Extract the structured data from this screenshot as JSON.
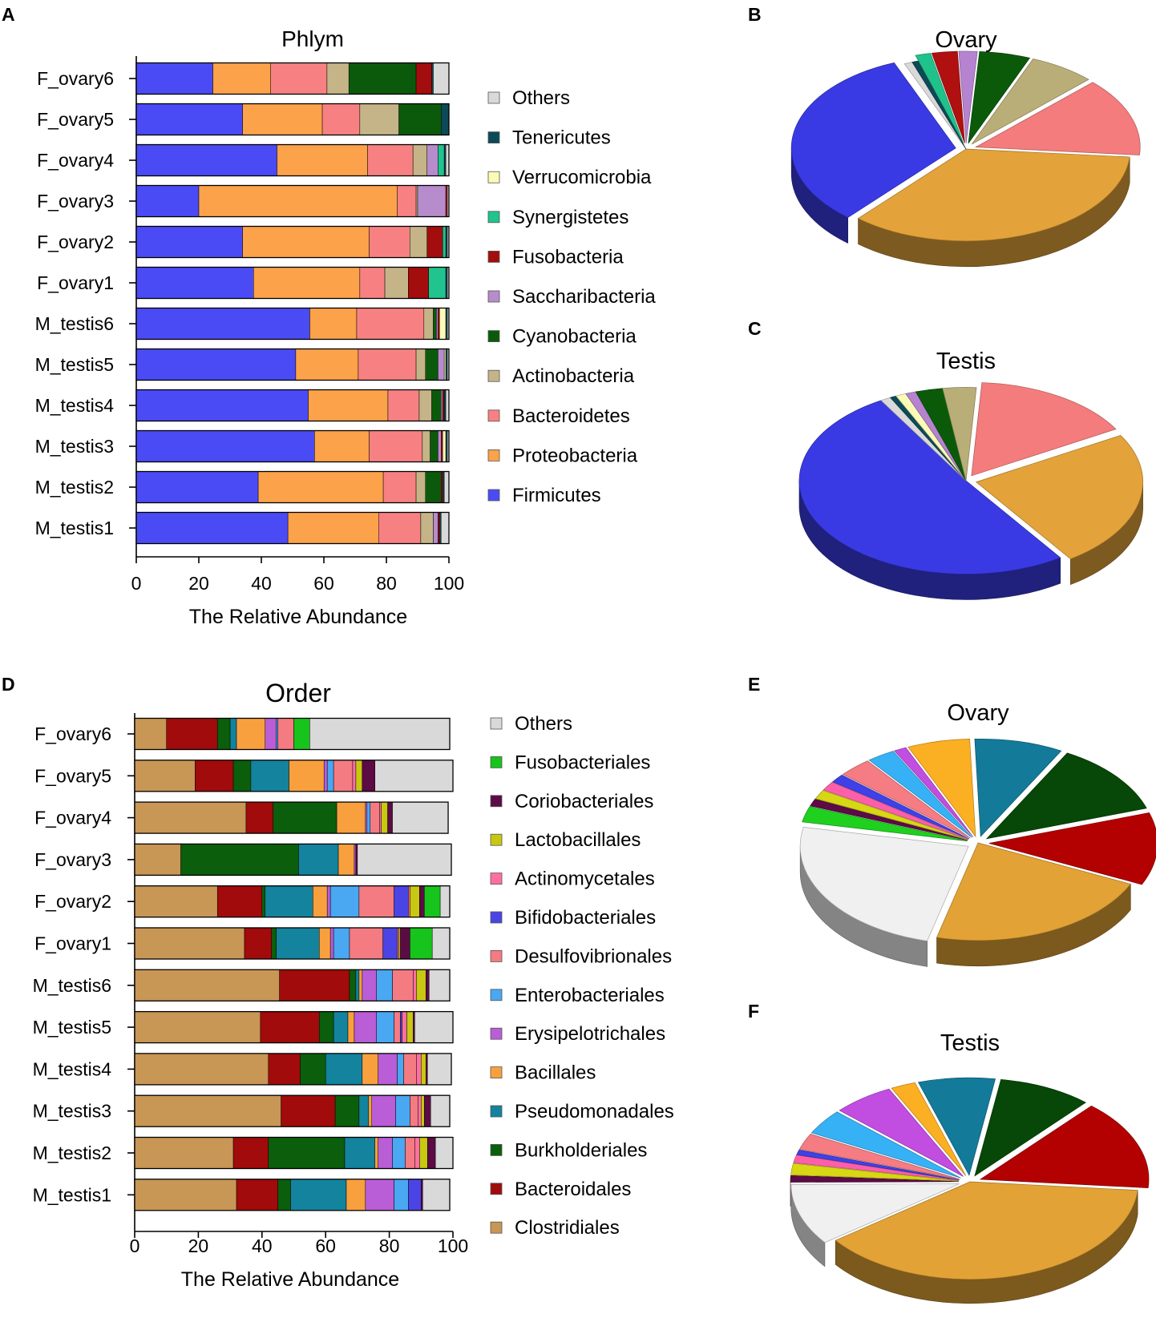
{
  "panel_letters": {
    "a": "A",
    "b": "B",
    "c": "C",
    "d": "D",
    "e": "E",
    "f": "F"
  },
  "chart_data": [
    {
      "id": "A",
      "type": "bar",
      "orientation": "horizontal",
      "stacked": true,
      "title": "Phlym",
      "xlabel": "The Relative Abundance",
      "ylabel": "",
      "xlim": [
        0,
        100
      ],
      "xticks": [
        0,
        20,
        40,
        60,
        80,
        100
      ],
      "categories": [
        "F_ovary6",
        "F_ovary5",
        "F_ovary4",
        "F_ovary3",
        "F_ovary2",
        "F_ovary1",
        "M_testis6",
        "M_testis5",
        "M_testis4",
        "M_testis3",
        "M_testis2",
        "M_testis1"
      ],
      "legend_position": "right",
      "series": [
        {
          "name": "Firmicutes",
          "color": "#4b4bf5",
          "values": [
            24.5,
            34,
            45,
            20,
            34,
            37.5,
            55.5,
            51,
            55,
            57,
            39,
            48.5
          ]
        },
        {
          "name": "Proteobacteria",
          "color": "#fba24a",
          "values": [
            18.5,
            25.5,
            29,
            63.5,
            40.5,
            34,
            15,
            20,
            25.5,
            17.5,
            40,
            29
          ]
        },
        {
          "name": "Bacteroidetes",
          "color": "#f78182",
          "values": [
            18,
            12,
            14.5,
            6,
            13,
            8,
            21.5,
            18.5,
            10,
            17,
            10.5,
            13.5
          ]
        },
        {
          "name": "Actinobacteria",
          "color": "#c5b487",
          "values": [
            7,
            12.5,
            4.5,
            0.5,
            5.5,
            7.5,
            3,
            3,
            4,
            2.5,
            3,
            4
          ]
        },
        {
          "name": "Cyanobacteria",
          "color": "#0b5a0b",
          "values": [
            21.5,
            13.5,
            0,
            0,
            0,
            0,
            1,
            4,
            3,
            2.5,
            5,
            0
          ]
        },
        {
          "name": "Saccharibacteria",
          "color": "#b78ccc",
          "values": [
            0,
            0,
            3.5,
            9,
            0,
            0,
            0.5,
            2,
            0.5,
            1,
            0,
            1.5
          ]
        },
        {
          "name": "Fusobacteria",
          "color": "#a30d0d",
          "values": [
            5,
            0,
            0,
            0.5,
            5,
            6.5,
            0.5,
            0,
            0.5,
            0.5,
            0.5,
            0.5
          ]
        },
        {
          "name": "Synergistetes",
          "color": "#21c38e",
          "values": [
            0,
            0,
            2,
            0,
            1,
            5.5,
            0,
            0,
            0,
            0,
            0,
            0
          ]
        },
        {
          "name": "Verrucomicrobia",
          "color": "#fbfbb7",
          "values": [
            0,
            0,
            0,
            0,
            0,
            0,
            2,
            0.5,
            0,
            1,
            0,
            0
          ]
        },
        {
          "name": "Tenericutes",
          "color": "#0c4a57",
          "values": [
            0.5,
            2.5,
            0.5,
            0,
            0.5,
            0.5,
            0.5,
            0.5,
            0.5,
            0.5,
            0.5,
            0.5
          ]
        },
        {
          "name": "Others",
          "color": "#d9d9d9",
          "values": [
            5,
            0,
            1,
            0.5,
            0.5,
            0.5,
            0.5,
            0.5,
            1,
            0.5,
            1.5,
            2.5
          ]
        }
      ]
    },
    {
      "id": "B",
      "type": "pie",
      "title": "Ovary",
      "slices": [
        {
          "label": "Proteobacteria",
          "value": 35,
          "color": "#e3a33a",
          "explode": false
        },
        {
          "label": "Firmicutes",
          "value": 32.5,
          "color": "#3a3ae4",
          "explode": true
        },
        {
          "label": "Others",
          "value": 0.8,
          "color": "#d9d9d9",
          "explode": false
        },
        {
          "label": "Tenericutes",
          "value": 0.6,
          "color": "#0c4a57",
          "explode": false
        },
        {
          "label": "Synergistetes",
          "value": 1.5,
          "color": "#1fc28a",
          "explode": true
        },
        {
          "label": "Fusobacteria",
          "value": 2.5,
          "color": "#b01010",
          "explode": true
        },
        {
          "label": "Saccharibacteria",
          "value": 1.8,
          "color": "#b583cf",
          "explode": true
        },
        {
          "label": "Cyanobacteria",
          "value": 5,
          "color": "#0a5a0a",
          "explode": true
        },
        {
          "label": "Actinobacteria",
          "value": 6.5,
          "color": "#b9ae78",
          "explode": true
        },
        {
          "label": "Bacteroidetes",
          "value": 13.8,
          "color": "#f47c7c",
          "explode": true
        }
      ]
    },
    {
      "id": "C",
      "type": "pie",
      "title": "Testis",
      "slices": [
        {
          "label": "Proteobacteria",
          "value": 23.5,
          "color": "#e3a33a",
          "explode": true
        },
        {
          "label": "Firmicutes",
          "value": 50.5,
          "color": "#3a3ae4",
          "explode": false
        },
        {
          "label": "Others",
          "value": 1,
          "color": "#d9d9d9",
          "explode": false
        },
        {
          "label": "Tenericutes",
          "value": 0.6,
          "color": "#0c4a57",
          "explode": false
        },
        {
          "label": "Verrucomicrobia",
          "value": 1,
          "color": "#fbfbb7",
          "explode": false
        },
        {
          "label": "Saccharibacteria",
          "value": 1,
          "color": "#b583cf",
          "explode": false
        },
        {
          "label": "Cyanobacteria",
          "value": 2.6,
          "color": "#0a5a0a",
          "explode": false
        },
        {
          "label": "Actinobacteria",
          "value": 3.2,
          "color": "#b9ae78",
          "explode": false
        },
        {
          "label": "Bacteroidetes",
          "value": 15.5,
          "color": "#f47c7c",
          "explode": true
        }
      ]
    },
    {
      "id": "D",
      "type": "bar",
      "orientation": "horizontal",
      "stacked": true,
      "title": "Order",
      "xlabel": "The Relative Abundance",
      "ylabel": "",
      "xlim": [
        0,
        100
      ],
      "xticks": [
        0,
        20,
        40,
        60,
        80,
        100
      ],
      "categories": [
        "F_ovary6",
        "F_ovary5",
        "F_ovary4",
        "F_ovary3",
        "F_ovary2",
        "F_ovary1",
        "M_testis6",
        "M_testis5",
        "M_testis4",
        "M_testis3",
        "M_testis2",
        "M_testis1"
      ],
      "legend_position": "right",
      "series": [
        {
          "name": "Clostridiales",
          "color": "#c89655",
          "values": [
            10,
            19,
            35,
            14.5,
            26,
            34.5,
            45.5,
            39.5,
            42,
            46,
            31,
            32
          ]
        },
        {
          "name": "Bacteroidales",
          "color": "#a10b0b",
          "values": [
            16,
            12,
            8.5,
            0,
            14,
            8.5,
            22,
            18.5,
            10,
            17,
            11,
            13
          ]
        },
        {
          "name": "Burkholderiales",
          "color": "#0b5e0b",
          "values": [
            4,
            5.5,
            20,
            37,
            1,
            1.5,
            2,
            4.5,
            8,
            7.5,
            24,
            4
          ]
        },
        {
          "name": "Pseudomonadales",
          "color": "#13839e",
          "values": [
            2,
            12,
            0,
            12.5,
            15,
            13.5,
            1,
            4.5,
            11.5,
            3,
            9.5,
            17.5
          ]
        },
        {
          "name": "Bacillales",
          "color": "#f9a03e",
          "values": [
            9,
            11,
            9,
            5,
            4.5,
            3.5,
            1,
            2,
            5,
            1,
            1,
            6
          ]
        },
        {
          "name": "Erysipelotrichales",
          "color": "#b95ed6",
          "values": [
            3.5,
            1,
            0.5,
            0.5,
            1,
            1,
            4.5,
            7,
            6,
            7.5,
            4.5,
            9
          ]
        },
        {
          "name": "Enterobacteriales",
          "color": "#4aa7f2",
          "values": [
            0.5,
            2,
            1,
            0,
            9,
            5,
            5,
            5.5,
            2,
            4.5,
            4,
            4.5
          ]
        },
        {
          "name": "Desulfovibrionales",
          "color": "#f47b82",
          "values": [
            5,
            6,
            3,
            0,
            11,
            10.5,
            6.5,
            2,
            4,
            2.5,
            3,
            0
          ]
        },
        {
          "name": "Bifidobacteriales",
          "color": "#4b44e5",
          "values": [
            0,
            0,
            0,
            0,
            4.5,
            4.5,
            0,
            0.5,
            0,
            0,
            0,
            4
          ]
        },
        {
          "name": "Actinomycetales",
          "color": "#ff6fa4",
          "values": [
            0,
            1,
            0.5,
            0,
            0.5,
            0.5,
            1,
            1.5,
            1.5,
            1,
            1.5,
            0
          ]
        },
        {
          "name": "Lactobacillales",
          "color": "#c8c712",
          "values": [
            0,
            2,
            2,
            0,
            3,
            0.5,
            3,
            2,
            1.5,
            1,
            2.5,
            0
          ]
        },
        {
          "name": "Coriobacteriales",
          "color": "#5c0b45",
          "values": [
            0,
            4,
            1.5,
            0.5,
            1.5,
            3,
            1,
            0.5,
            0.5,
            2,
            2.5,
            0.5
          ]
        },
        {
          "name": "Fusobacteriales",
          "color": "#17c41c",
          "values": [
            5,
            0,
            0,
            0,
            5,
            7,
            0,
            0,
            0,
            0,
            0,
            0
          ]
        },
        {
          "name": "Others",
          "color": "#d9d9d9",
          "values": [
            44,
            24.5,
            17.5,
            29.5,
            3,
            5.5,
            6.5,
            12,
            7.5,
            6,
            5.5,
            8.5
          ]
        }
      ]
    },
    {
      "id": "E",
      "type": "pie",
      "title": "Ovary",
      "slices": [
        {
          "label": "Clostridiales",
          "value": 22,
          "color": "#e2a235",
          "explode": false
        },
        {
          "label": "Others",
          "value": 24.2,
          "color": "#f0f0f0",
          "explode": true
        },
        {
          "label": "Fusobacteriales",
          "value": 2.6,
          "color": "#1fd01f",
          "explode": true
        },
        {
          "label": "Coriobacteriales",
          "value": 1.2,
          "color": "#5c0b45",
          "explode": true
        },
        {
          "label": "Lactobacillales",
          "value": 1.5,
          "color": "#d7d713",
          "explode": true
        },
        {
          "label": "Actinomycetales",
          "value": 1.5,
          "color": "#ff5fa8",
          "explode": true
        },
        {
          "label": "Bifidobacteriales",
          "value": 1.4,
          "color": "#4040e8",
          "explode": true
        },
        {
          "label": "Desulfovibrionales",
          "value": 3.2,
          "color": "#f47c82",
          "explode": true
        },
        {
          "label": "Enterobacteriales",
          "value": 2.7,
          "color": "#37b1f5",
          "explode": true
        },
        {
          "label": "Erysipelotrichales",
          "value": 1.2,
          "color": "#c14ee0",
          "explode": true
        },
        {
          "label": "Bacillales",
          "value": 6,
          "color": "#fbaf22",
          "explode": true
        },
        {
          "label": "Pseudomonadales",
          "value": 8.5,
          "color": "#137a9a",
          "explode": true
        },
        {
          "label": "Burkholderiales",
          "value": 12,
          "color": "#074707",
          "explode": true
        },
        {
          "label": "Bacteroidales",
          "value": 12,
          "color": "#b30000",
          "explode": true
        }
      ]
    },
    {
      "id": "F",
      "type": "pie",
      "title": "Testis",
      "slices": [
        {
          "label": "Clostridiales",
          "value": 38.5,
          "color": "#e2a235",
          "explode": false
        },
        {
          "label": "Others",
          "value": 10.2,
          "color": "#f0f0f0",
          "explode": true
        },
        {
          "label": "Coriobacteriales",
          "value": 1.1,
          "color": "#5c0b45",
          "explode": true
        },
        {
          "label": "Lactobacillales",
          "value": 1.9,
          "color": "#d7d713",
          "explode": true
        },
        {
          "label": "Actinomycetales",
          "value": 1.3,
          "color": "#ff5fa8",
          "explode": true
        },
        {
          "label": "Bifidobacteriales",
          "value": 0.8,
          "color": "#4040e8",
          "explode": true
        },
        {
          "label": "Desulfovibrionales",
          "value": 2.7,
          "color": "#f47c82",
          "explode": true
        },
        {
          "label": "Enterobacteriales",
          "value": 4.2,
          "color": "#37b1f5",
          "explode": true
        },
        {
          "label": "Erysipelotrichales",
          "value": 5.9,
          "color": "#c14ee0",
          "explode": true
        },
        {
          "label": "Bacillales",
          "value": 2.4,
          "color": "#fbaf22",
          "explode": true
        },
        {
          "label": "Pseudomonadales",
          "value": 7.4,
          "color": "#137a9a",
          "explode": true
        },
        {
          "label": "Burkholderiales",
          "value": 9,
          "color": "#074707",
          "explode": true
        },
        {
          "label": "Bacteroidales",
          "value": 15,
          "color": "#b30000",
          "explode": true
        }
      ]
    }
  ]
}
